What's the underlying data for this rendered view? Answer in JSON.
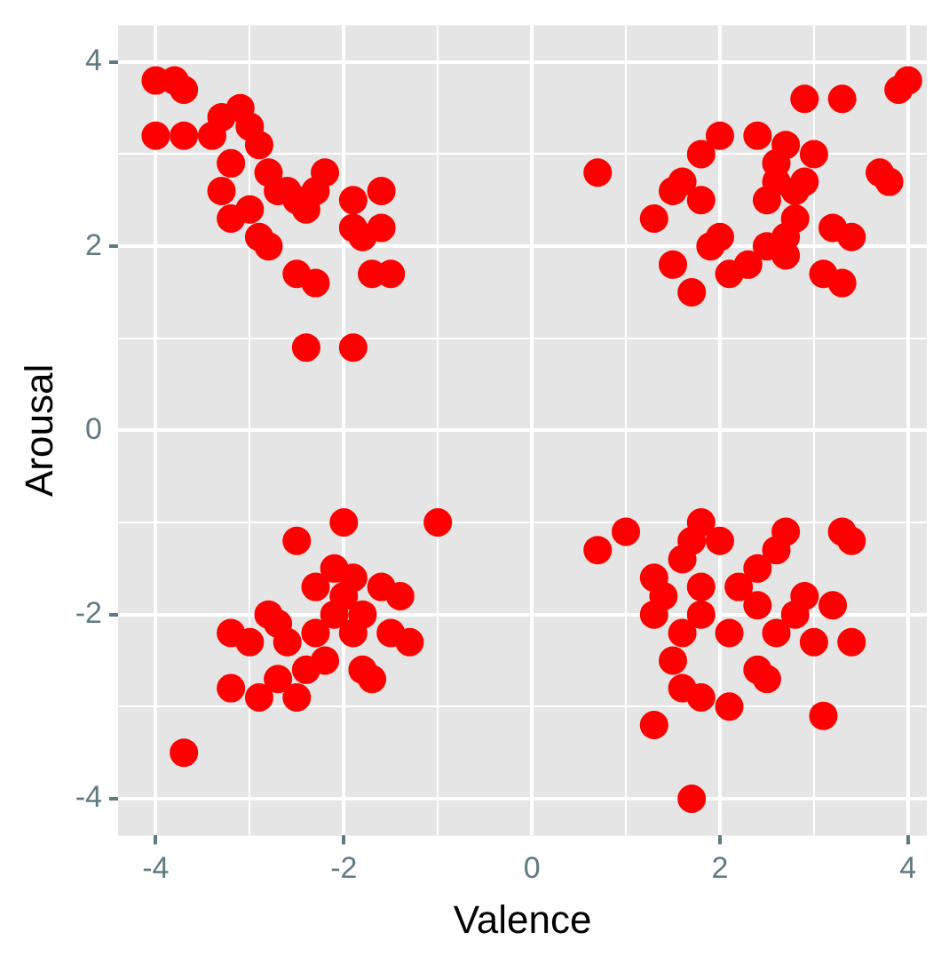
{
  "chart_data": {
    "type": "scatter",
    "xlabel": "Valence",
    "ylabel": "Arousal",
    "xlim": [
      -4.4,
      4.2
    ],
    "ylim": [
      -4.4,
      4.4
    ],
    "xticks": [
      -4,
      {
        "value": -3,
        "label": null
      },
      -2,
      {
        "value": -1,
        "label": null
      },
      0,
      {
        "value": 1,
        "label": null
      },
      2,
      {
        "value": 3,
        "label": null
      },
      4
    ],
    "yticks": [
      -4,
      {
        "value": -3,
        "label": null
      },
      -2,
      {
        "value": -1,
        "label": null
      },
      0,
      {
        "value": 1,
        "label": null
      },
      2,
      {
        "value": 3,
        "label": null
      },
      4
    ],
    "grid": true,
    "legend": false,
    "marker": "circle",
    "series": [
      {
        "color": "#ff0000",
        "x": [
          -4,
          -3.8,
          -3.7,
          -4,
          -3.7,
          -3.4,
          -3.3,
          -3.1,
          -3.0,
          -2.9,
          -3.2,
          -3.3,
          -2.8,
          -2.7,
          -2.5,
          -2.4,
          -2.3,
          -2.2,
          -1.9,
          -1.6,
          -3.2,
          -2.9,
          -2.8,
          -2.5,
          -2.3,
          -1.8,
          -1.9,
          -1.6,
          -1.7,
          -1.5,
          -2.4,
          -1.9,
          -3.0,
          -2.6,
          0.7,
          1.3,
          1.7,
          1.5,
          1.5,
          1.6,
          1.8,
          1.9,
          1.8,
          2.0,
          2.1,
          2.3,
          2.5,
          2.5,
          2.6,
          2.6,
          2.7,
          2.8,
          2.7,
          2.9,
          3.0,
          2.9,
          3.3,
          3.2,
          3.4,
          3.1,
          3.3,
          3.8,
          3.7,
          3.9,
          4.0,
          2.8,
          2.7,
          2.0,
          2.4,
          -3.7,
          -3.2,
          -3.0,
          -3.2,
          -2.9,
          -2.7,
          -2.5,
          -2.4,
          -2.3,
          -2.5,
          -2.0,
          -1.0,
          -2.3,
          -2.1,
          -1.9,
          -1.6,
          -1.4,
          -1.5,
          -2.1,
          -1.8,
          -2.2,
          -1.8,
          -1.7,
          -2.8,
          -2.6,
          -1.9,
          -1.3,
          -2.0,
          -2.7,
          0.7,
          1.0,
          1.3,
          1.4,
          1.3,
          1.6,
          1.7,
          1.8,
          2.0,
          1.8,
          2.2,
          2.4,
          2.6,
          2.7,
          2.9,
          2.8,
          3.2,
          3.3,
          3.4,
          1.6,
          1.8,
          2.1,
          2.6,
          3.0,
          3.4,
          1.5,
          1.6,
          1.8,
          1.3,
          2.1,
          2.4,
          2.5,
          3.1,
          1.7,
          2.4
        ],
        "values": [
          3.8,
          3.8,
          3.7,
          3.2,
          3.2,
          3.2,
          3.4,
          3.5,
          3.3,
          3.1,
          2.9,
          2.6,
          2.8,
          2.6,
          2.5,
          2.4,
          2.6,
          2.8,
          2.5,
          2.6,
          2.3,
          2.1,
          2.0,
          1.7,
          1.6,
          2.1,
          2.2,
          2.2,
          1.7,
          1.7,
          0.9,
          0.9,
          2.4,
          2.6,
          2.8,
          2.3,
          1.5,
          1.8,
          2.6,
          2.7,
          2.5,
          2.0,
          3.0,
          3.2,
          1.7,
          1.8,
          2.0,
          2.5,
          2.7,
          2.9,
          3.1,
          2.3,
          1.9,
          2.7,
          3.0,
          3.6,
          3.6,
          2.2,
          2.1,
          1.7,
          1.6,
          2.7,
          2.8,
          3.7,
          3.8,
          2.6,
          2.1,
          2.1,
          3.2,
          -3.5,
          -2.2,
          -2.3,
          -2.8,
          -2.9,
          -2.7,
          -2.9,
          -2.6,
          -2.2,
          -1.2,
          -1.0,
          -1.0,
          -1.7,
          -1.5,
          -1.6,
          -1.7,
          -1.8,
          -2.2,
          -2.0,
          -2.0,
          -2.5,
          -2.6,
          -2.7,
          -2.0,
          -2.3,
          -2.2,
          -2.3,
          -1.8,
          -2.1,
          -1.3,
          -1.1,
          -1.6,
          -1.8,
          -2.0,
          -1.4,
          -1.2,
          -1.0,
          -1.2,
          -1.7,
          -1.7,
          -1.5,
          -1.3,
          -1.1,
          -1.8,
          -2.0,
          -1.9,
          -1.1,
          -1.2,
          -2.2,
          -2.0,
          -2.2,
          -2.2,
          -2.3,
          -2.3,
          -2.5,
          -2.8,
          -2.9,
          -3.2,
          -3.0,
          -2.6,
          -2.7,
          -3.1,
          -4.0,
          -1.9
        ]
      }
    ]
  }
}
